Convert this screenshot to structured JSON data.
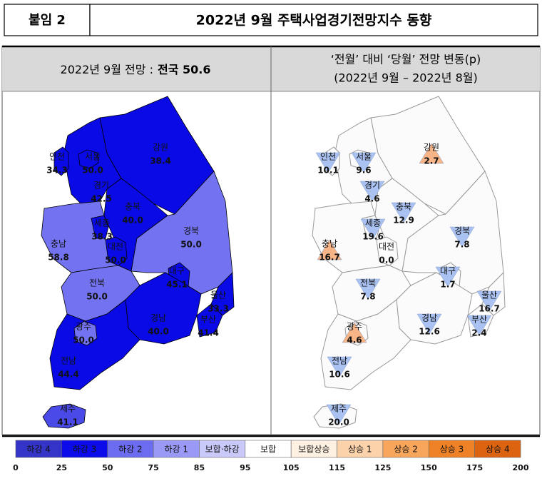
{
  "header": {
    "label": "붙임 2",
    "title": "2022년 9월 주택사업경기전망지수 동향"
  },
  "left_panel": {
    "heading_prefix": "2022년 9월 전망 :",
    "heading_value": "전국 50.6",
    "regions": [
      {
        "name": "강원",
        "value": "38.4",
        "color": "#0a0ae6"
      },
      {
        "name": "경기",
        "value": "42.5",
        "color": "#0a0ae6"
      },
      {
        "name": "서울",
        "value": "50.0",
        "color": "#0a0ae6"
      },
      {
        "name": "인천",
        "value": "34.3",
        "color": "#0a0ae6"
      },
      {
        "name": "충북",
        "value": "40.0",
        "color": "#0a0ae6"
      },
      {
        "name": "충남",
        "value": "58.8",
        "color": "#7373f2"
      },
      {
        "name": "세종",
        "value": "38.3",
        "color": "#0a0ae6"
      },
      {
        "name": "대전",
        "value": "50.0",
        "color": "#0a0ae6"
      },
      {
        "name": "경북",
        "value": "50.0",
        "color": "#7373f2"
      },
      {
        "name": "대구",
        "value": "45.1",
        "color": "#0a0ae6"
      },
      {
        "name": "전북",
        "value": "50.0",
        "color": "#7373f2"
      },
      {
        "name": "경남",
        "value": "40.0",
        "color": "#0a0ae6"
      },
      {
        "name": "울산",
        "value": "33.3",
        "color": "#0a0ae6"
      },
      {
        "name": "부산",
        "value": "41.4",
        "color": "#0a0ae6"
      },
      {
        "name": "전남",
        "value": "44.4",
        "color": "#0a0ae6"
      },
      {
        "name": "광주",
        "value": "50.0",
        "color": "#7373f2"
      },
      {
        "name": "제주",
        "value": "41.1",
        "color": "#4a4ae8"
      }
    ]
  },
  "right_panel": {
    "heading_line1": "‘전월’ 대비 ‘당월’ 전망 변동(p)",
    "heading_line2": "(2022년 9월 – 2022년 8월)",
    "regions": [
      {
        "name": "강원",
        "change": "2.7",
        "marker": "up",
        "color": "#f6b487"
      },
      {
        "name": "경기",
        "change": "4.6",
        "marker": "down",
        "color": "#a9c2f2"
      },
      {
        "name": "서울",
        "change": "9.6",
        "marker": "down",
        "color": "#a9c2f2"
      },
      {
        "name": "인천",
        "change": "10.1",
        "marker": "down",
        "color": "#a9c2f2"
      },
      {
        "name": "충북",
        "change": "12.9",
        "marker": "down",
        "color": "#a9c2f2"
      },
      {
        "name": "충남",
        "change": "16.7",
        "marker": "up",
        "color": "#f6b487"
      },
      {
        "name": "세종",
        "change": "19.6",
        "marker": "down",
        "color": "#a9c2f2"
      },
      {
        "name": "대전",
        "change": "0.0",
        "marker": "none",
        "color": "#ffffff"
      },
      {
        "name": "경북",
        "change": "7.8",
        "marker": "down",
        "color": "#a9c2f2"
      },
      {
        "name": "대구",
        "change": "1.7",
        "marker": "down",
        "color": "#a9c2f2"
      },
      {
        "name": "전북",
        "change": "7.8",
        "marker": "down",
        "color": "#a9c2f2"
      },
      {
        "name": "경남",
        "change": "12.6",
        "marker": "down",
        "color": "#a9c2f2"
      },
      {
        "name": "울산",
        "change": "16.7",
        "marker": "down",
        "color": "#a9c2f2"
      },
      {
        "name": "부산",
        "change": "2.4",
        "marker": "down",
        "color": "#a9c2f2"
      },
      {
        "name": "전남",
        "change": "10.6",
        "marker": "down",
        "color": "#a9c2f2"
      },
      {
        "name": "광주",
        "change": "4.6",
        "marker": "up",
        "color": "#f6b487"
      },
      {
        "name": "제주",
        "change": "20.0",
        "marker": "down",
        "color": "#a9c2f2"
      }
    ]
  },
  "legend": {
    "items": [
      {
        "label": "하강 4",
        "color": "#3434c8"
      },
      {
        "label": "하강 3",
        "color": "#0c0cea"
      },
      {
        "label": "하강 2",
        "color": "#6c6cf0"
      },
      {
        "label": "하강 1",
        "color": "#9a9af6"
      },
      {
        "label": "보합·하강",
        "color": "#c9c9fa"
      },
      {
        "label": "보합",
        "color": "#ffffff"
      },
      {
        "label": "보합상승",
        "color": "#fff1e2"
      },
      {
        "label": "상승 1",
        "color": "#fcd2ab"
      },
      {
        "label": "상승 2",
        "color": "#f7a65c"
      },
      {
        "label": "상승 3",
        "color": "#ef8226"
      },
      {
        "label": "상승 4",
        "color": "#dc6410"
      }
    ],
    "ticks": [
      0,
      25,
      50,
      75,
      85,
      95,
      105,
      115,
      125,
      150,
      175,
      200
    ]
  }
}
